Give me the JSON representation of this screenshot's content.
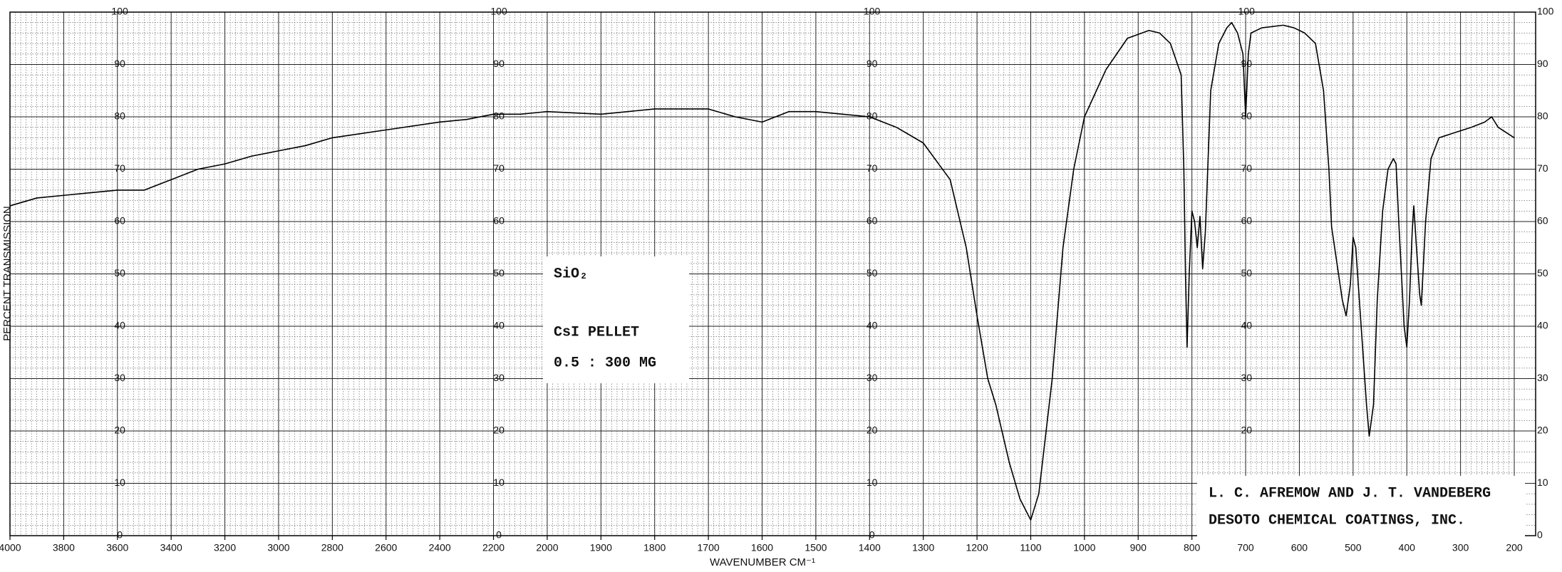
{
  "chart_data": {
    "type": "line",
    "y_label": "PERCENT TRANSMISSION",
    "x_label": "WAVENUMBER CM⁻¹",
    "sample_lines": [
      "SiO₂",
      "CsI PELLET",
      "0.5 : 300 MG"
    ],
    "credit_lines": [
      "L. C. AFREMOW AND J. T. VANDEBERG",
      "DESOTO CHEMICAL COATINGS, INC."
    ],
    "xlim": [
      4000,
      200
    ],
    "x_scale_change_at": 2000,
    "xticks": [
      4000,
      3800,
      3600,
      3400,
      3200,
      3000,
      2800,
      2600,
      2400,
      2200,
      2000,
      1900,
      1800,
      1700,
      1600,
      1500,
      1400,
      1300,
      1200,
      1100,
      1000,
      900,
      800,
      700,
      600,
      500,
      400,
      300,
      200
    ],
    "ylim": [
      0,
      100
    ],
    "yticks": [
      0,
      10,
      20,
      30,
      40,
      50,
      60,
      70,
      80,
      90,
      100
    ],
    "grid": true,
    "x": [
      4000,
      3900,
      3800,
      3700,
      3600,
      3500,
      3400,
      3300,
      3200,
      3100,
      3000,
      2900,
      2800,
      2600,
      2400,
      2300,
      2200,
      2100,
      2000,
      1900,
      1800,
      1700,
      1650,
      1600,
      1550,
      1500,
      1450,
      1400,
      1350,
      1300,
      1250,
      1220,
      1200,
      1180,
      1165,
      1140,
      1120,
      1100,
      1085,
      1060,
      1040,
      1020,
      1000,
      960,
      920,
      880,
      860,
      840,
      820,
      815,
      812,
      809,
      805,
      800,
      795,
      790,
      785,
      780,
      775,
      765,
      750,
      735,
      726,
      715,
      705,
      700,
      695,
      690,
      670,
      630,
      610,
      590,
      570,
      555,
      545,
      540,
      530,
      520,
      513,
      505,
      500,
      495,
      485,
      475,
      470,
      462,
      455,
      445,
      435,
      425,
      420,
      415,
      405,
      400,
      395,
      390,
      387,
      382,
      376,
      373,
      365,
      355,
      340,
      310,
      280,
      255,
      242,
      230,
      215,
      200
    ],
    "series": [
      {
        "color": "#000000",
        "values": [
          63,
          64.5,
          65,
          65.5,
          66,
          66,
          68,
          70,
          71,
          72.5,
          73.5,
          74.5,
          76,
          77.5,
          79,
          79.5,
          80.5,
          80.5,
          81,
          80.5,
          81.5,
          81.5,
          80,
          79,
          81,
          81,
          80.5,
          80,
          78,
          75,
          68,
          55,
          42,
          30,
          25,
          14,
          7,
          3,
          8,
          30,
          55,
          70,
          80,
          89,
          95,
          96.5,
          96,
          94,
          88,
          70,
          50,
          36,
          50,
          62,
          60,
          55,
          61,
          51,
          58,
          85,
          94,
          97,
          98,
          96,
          92,
          80,
          92,
          96,
          97,
          97.5,
          97,
          96,
          94,
          85,
          70,
          59,
          52,
          45,
          42,
          48,
          57,
          55,
          40,
          25,
          19,
          25,
          45,
          62,
          70,
          72,
          71,
          60,
          40,
          36,
          45,
          58,
          63,
          55,
          46,
          44,
          60,
          72,
          76,
          77,
          78,
          79,
          80,
          78,
          77,
          76
        ]
      }
    ]
  }
}
